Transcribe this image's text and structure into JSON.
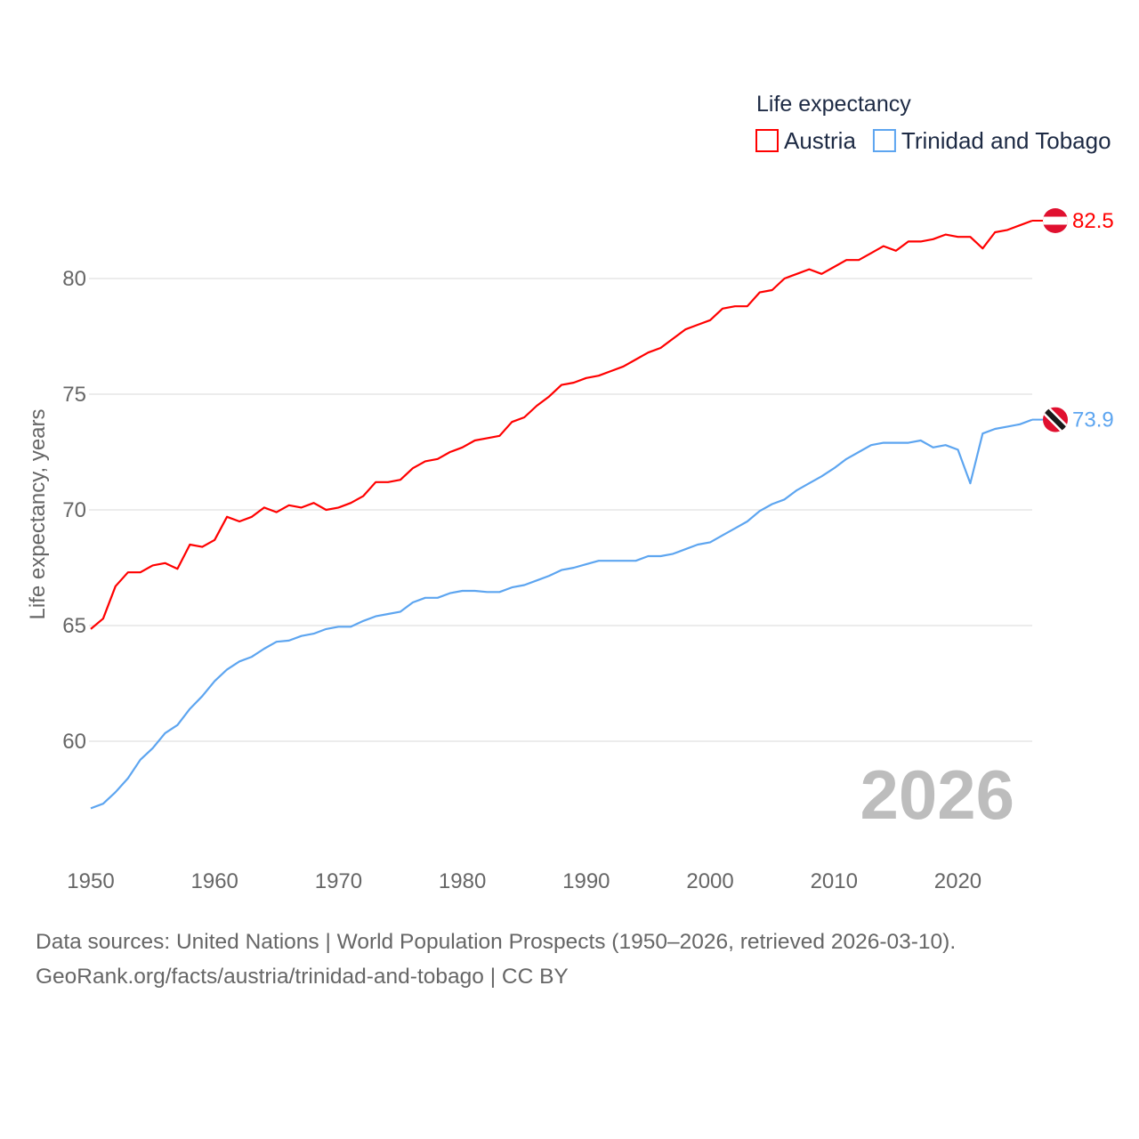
{
  "chart_data": {
    "type": "line",
    "title": "",
    "legend_title": "Life expectancy",
    "legend_position": "top-right",
    "ylabel": "Life expectancy, years",
    "xlabel": "",
    "xlim": [
      1950,
      2026
    ],
    "ylim": [
      55.5,
      84
    ],
    "yticks": [
      60,
      65,
      70,
      75,
      80
    ],
    "xticks": [
      1950,
      1960,
      1970,
      1980,
      1990,
      2000,
      2010,
      2020
    ],
    "grid": true,
    "current_year": "2026",
    "x": [
      1950,
      1951,
      1952,
      1953,
      1954,
      1955,
      1956,
      1957,
      1958,
      1959,
      1960,
      1961,
      1962,
      1963,
      1964,
      1965,
      1966,
      1967,
      1968,
      1969,
      1970,
      1971,
      1972,
      1973,
      1974,
      1975,
      1976,
      1977,
      1978,
      1979,
      1980,
      1981,
      1982,
      1983,
      1984,
      1985,
      1986,
      1987,
      1988,
      1989,
      1990,
      1991,
      1992,
      1993,
      1994,
      1995,
      1996,
      1997,
      1998,
      1999,
      2000,
      2001,
      2002,
      2003,
      2004,
      2005,
      2006,
      2007,
      2008,
      2009,
      2010,
      2011,
      2012,
      2013,
      2014,
      2015,
      2016,
      2017,
      2018,
      2019,
      2020,
      2021,
      2022,
      2023,
      2024,
      2025,
      2026
    ],
    "series": [
      {
        "name": "Austria",
        "color": "#ff0000",
        "end_label": "82.5",
        "flag": "austria-flag",
        "values": [
          64.85,
          65.3,
          66.7,
          67.3,
          67.3,
          67.6,
          67.7,
          67.45,
          68.5,
          68.4,
          68.7,
          69.7,
          69.5,
          69.7,
          70.1,
          69.9,
          70.2,
          70.1,
          70.3,
          70.0,
          70.1,
          70.3,
          70.6,
          71.2,
          71.2,
          71.3,
          71.8,
          72.1,
          72.2,
          72.5,
          72.7,
          73.0,
          73.1,
          73.2,
          73.8,
          74.0,
          74.5,
          74.9,
          75.4,
          75.5,
          75.7,
          75.8,
          76.0,
          76.2,
          76.5,
          76.8,
          77.0,
          77.4,
          77.8,
          78.0,
          78.2,
          78.7,
          78.8,
          78.8,
          79.4,
          79.5,
          80.0,
          80.2,
          80.4,
          80.2,
          80.5,
          80.8,
          80.8,
          81.1,
          81.4,
          81.2,
          81.6,
          81.6,
          81.7,
          81.9,
          81.8,
          81.8,
          81.3,
          82.0,
          82.1,
          82.3,
          82.5
        ]
      },
      {
        "name": "Trinidad and Tobago",
        "color": "#5da5f0",
        "end_label": "73.9",
        "flag": "trinidad-and-tobago-flag",
        "values": [
          57.1,
          57.3,
          57.8,
          58.4,
          59.2,
          59.7,
          60.35,
          60.7,
          61.4,
          61.95,
          62.6,
          63.1,
          63.45,
          63.65,
          64.0,
          64.3,
          64.35,
          64.55,
          64.65,
          64.85,
          64.95,
          64.95,
          65.2,
          65.4,
          65.5,
          65.6,
          66.0,
          66.2,
          66.2,
          66.4,
          66.5,
          66.5,
          66.45,
          66.45,
          66.65,
          66.75,
          66.95,
          67.15,
          67.4,
          67.5,
          67.65,
          67.8,
          67.8,
          67.8,
          67.8,
          68.0,
          68.0,
          68.1,
          68.3,
          68.5,
          68.6,
          68.9,
          69.2,
          69.5,
          69.95,
          70.25,
          70.45,
          70.85,
          71.15,
          71.45,
          71.8,
          72.2,
          72.5,
          72.8,
          72.9,
          72.9,
          72.9,
          73.0,
          72.7,
          72.8,
          72.6,
          71.15,
          73.3,
          73.5,
          73.6,
          73.7,
          73.9
        ]
      }
    ]
  },
  "footer": {
    "line1": "Data sources: United Nations | World Population Prospects (1950–2026, retrieved 2026-03-10).",
    "line2": "GeoRank.org/facts/austria/trinidad-and-tobago | CC BY"
  }
}
